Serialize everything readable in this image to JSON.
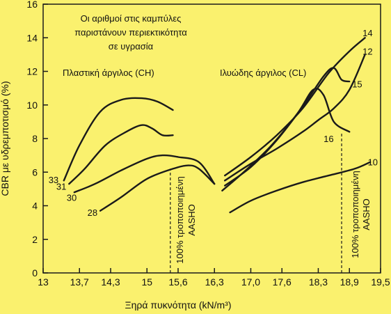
{
  "colors": {
    "background": "#faf16e",
    "ink": "#1a1a1a"
  },
  "chart_data": {
    "type": "line",
    "xlabel": "Ξηρά πυκνότητα (kN/m³)",
    "ylabel": "CBR με υδρεμποτισμό (%)",
    "xlim": [
      13,
      19.5
    ],
    "ylim": [
      0,
      16
    ],
    "grid": false,
    "x_ticks": [
      {
        "value": 13.0,
        "label": "13"
      },
      {
        "value": 13.7,
        "label": "13,7"
      },
      {
        "value": 14.3,
        "label": "14,3"
      },
      {
        "value": 15.0,
        "label": "15"
      },
      {
        "value": 15.6,
        "label": "15,6"
      },
      {
        "value": 16.3,
        "label": "16,3"
      },
      {
        "value": 17.0,
        "label": "17,0"
      },
      {
        "value": 17.6,
        "label": "17,6"
      },
      {
        "value": 18.3,
        "label": "18,3"
      },
      {
        "value": 18.9,
        "label": "18,9"
      },
      {
        "value": 19.5,
        "label": "19,5"
      }
    ],
    "y_ticks": [
      {
        "value": 0,
        "label": "0"
      },
      {
        "value": 2,
        "label": "2"
      },
      {
        "value": 4,
        "label": "4"
      },
      {
        "value": 6,
        "label": "6"
      },
      {
        "value": 8,
        "label": "8"
      },
      {
        "value": 10,
        "label": "10"
      },
      {
        "value": 12,
        "label": "12"
      },
      {
        "value": 14,
        "label": "14"
      },
      {
        "value": 16,
        "label": "16"
      }
    ],
    "annotations": {
      "moisture_note": [
        "Οι αριθμοί στις καμπύλες",
        "παριστάνουν περιεκτικότητα",
        "σε υγρασία"
      ],
      "group_ch": "Πλαστική άργιλος (CH)",
      "group_cl": "Ιλυώδης άργιλος (CL)",
      "aasho_left": [
        "100% τροποποιημένη",
        "AASHO"
      ],
      "aasho_right": [
        "100% τροποποιημένη",
        "AASHO"
      ]
    },
    "reference_lines": [
      {
        "name": "aasho-ch",
        "x": 15.45,
        "y_from": 0,
        "y_to": 6.2
      },
      {
        "name": "aasho-cl",
        "x": 18.75,
        "y_from": 0,
        "y_to": 8.3
      }
    ],
    "series": [
      {
        "name": "33",
        "group": "CH",
        "x": [
          13.4,
          13.7,
          14.1,
          14.5,
          14.9,
          15.2,
          15.5
        ],
        "y": [
          5.5,
          7.6,
          9.6,
          10.3,
          10.4,
          10.2,
          9.7
        ]
      },
      {
        "name": "31",
        "group": "CH",
        "x": [
          13.5,
          13.8,
          14.2,
          14.6,
          14.9,
          15.1,
          15.3,
          15.5
        ],
        "y": [
          5.3,
          6.2,
          7.6,
          8.4,
          8.8,
          8.6,
          8.2,
          8.2
        ]
      },
      {
        "name": "30",
        "group": "CH",
        "x": [
          13.6,
          14.0,
          14.5,
          15.0,
          15.3,
          15.6,
          16.0,
          16.3
        ],
        "y": [
          4.8,
          5.3,
          6.1,
          6.8,
          7.0,
          6.9,
          6.6,
          5.3
        ]
      },
      {
        "name": "28",
        "group": "CH",
        "x": [
          14.1,
          14.5,
          15.0,
          15.5,
          15.8,
          16.0,
          16.3
        ],
        "y": [
          3.7,
          4.5,
          5.6,
          6.2,
          6.4,
          6.2,
          5.3
        ]
      },
      {
        "name": "14",
        "group": "CL",
        "x": [
          16.5,
          17.0,
          17.5,
          18.0,
          18.5,
          18.9,
          19.2
        ],
        "y": [
          5.8,
          6.9,
          8.2,
          9.8,
          11.9,
          13.2,
          14.0
        ]
      },
      {
        "name": "12",
        "group": "CL",
        "x": [
          16.5,
          17.0,
          17.5,
          18.0,
          18.3,
          18.6,
          18.9,
          19.2
        ],
        "y": [
          5.5,
          6.5,
          7.4,
          8.4,
          9.1,
          9.8,
          10.9,
          13.0
        ]
      },
      {
        "name": "15",
        "group": "CL",
        "x": [
          16.5,
          17.0,
          17.5,
          18.0,
          18.4,
          18.6,
          18.75,
          18.9
        ],
        "y": [
          5.2,
          6.3,
          7.9,
          9.9,
          11.7,
          12.2,
          11.5,
          11.4
        ]
      },
      {
        "name": "16",
        "group": "CL",
        "x": [
          16.45,
          16.9,
          17.4,
          17.9,
          18.2,
          18.4,
          18.6,
          18.9
        ],
        "y": [
          4.9,
          6.1,
          7.6,
          9.5,
          10.9,
          10.6,
          9.0,
          8.4
        ]
      },
      {
        "name": "10",
        "group": "CL",
        "x": [
          16.6,
          17.0,
          17.5,
          18.0,
          18.5,
          19.0,
          19.3
        ],
        "y": [
          3.6,
          4.3,
          4.9,
          5.4,
          5.8,
          6.2,
          6.6
        ]
      }
    ],
    "curve_labels": [
      {
        "name": "33",
        "x": 13.2,
        "y": 5.35
      },
      {
        "name": "31",
        "x": 13.35,
        "y": 4.95
      },
      {
        "name": "30",
        "x": 13.55,
        "y": 4.3
      },
      {
        "name": "28",
        "x": 13.95,
        "y": 3.4
      },
      {
        "name": "14",
        "x": 19.25,
        "y": 14.1
      },
      {
        "name": "12",
        "x": 19.25,
        "y": 13.0
      },
      {
        "name": "15",
        "x": 19.05,
        "y": 11.05
      },
      {
        "name": "16",
        "x": 18.5,
        "y": 7.8
      },
      {
        "name": "10",
        "x": 19.35,
        "y": 6.4
      }
    ]
  }
}
